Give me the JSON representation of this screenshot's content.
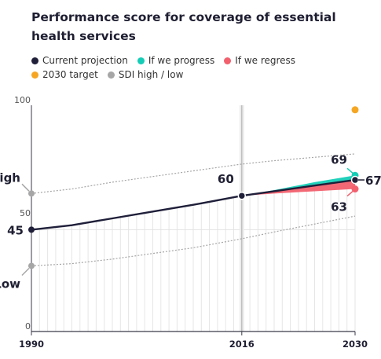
{
  "title": "Performance score for coverage of essential health services",
  "legend": {
    "items": [
      {
        "key": "current",
        "label": "Current projection",
        "color": "#1f1f3a"
      },
      {
        "key": "progress",
        "label": "If we progress",
        "color": "#14cdb6"
      },
      {
        "key": "regress",
        "label": "If we regress",
        "color": "#f2606e"
      },
      {
        "key": "target",
        "label": "2030 target",
        "color": "#f5a623"
      },
      {
        "key": "sdi",
        "label": "SDI high / low",
        "color": "#a6a6a6"
      }
    ]
  },
  "chart_data": {
    "type": "line",
    "title": "Performance score for coverage of essential health services",
    "xlim": [
      1990,
      2030
    ],
    "ylim": [
      0,
      100
    ],
    "x_ticks": [
      "1990",
      "2016",
      "2030"
    ],
    "y_ticks": [
      "0",
      "50",
      "100"
    ],
    "series": [
      {
        "name": "Current projection",
        "color": "#1f1f3a",
        "x": [
          1990,
          1995,
          2000,
          2005,
          2010,
          2016,
          2020,
          2025,
          2030
        ],
        "y": [
          45,
          47,
          50,
          53,
          56,
          60,
          62,
          64.5,
          67
        ]
      },
      {
        "name": "If we progress",
        "color": "#14cdb6",
        "x": [
          2016,
          2020,
          2025,
          2030
        ],
        "y": [
          60,
          62.5,
          66,
          69
        ]
      },
      {
        "name": "If we regress",
        "color": "#f2606e",
        "x": [
          2016,
          2020,
          2025,
          2030
        ],
        "y": [
          60,
          61,
          62,
          63
        ]
      },
      {
        "name": "SDI high / low",
        "color": "#a6a6a6",
        "x": [
          1990,
          1995,
          2000,
          2005,
          2010,
          2016,
          2020,
          2025,
          2030
        ],
        "high": [
          61,
          63,
          66,
          68.5,
          71,
          74,
          75.5,
          77,
          78.5
        ],
        "low": [
          29,
          30,
          32,
          34.5,
          37,
          41,
          44,
          47.5,
          51
        ]
      },
      {
        "name": "2030 target",
        "color": "#f5a623",
        "x": [
          2030
        ],
        "y": [
          98
        ]
      }
    ],
    "annotations": {
      "start_value": "45",
      "mid_value": "60",
      "end_current": "67",
      "end_progress": "69",
      "end_regress": "63",
      "high_label": "High",
      "low_label": "Low"
    },
    "grid": true,
    "split_year": 2016
  }
}
